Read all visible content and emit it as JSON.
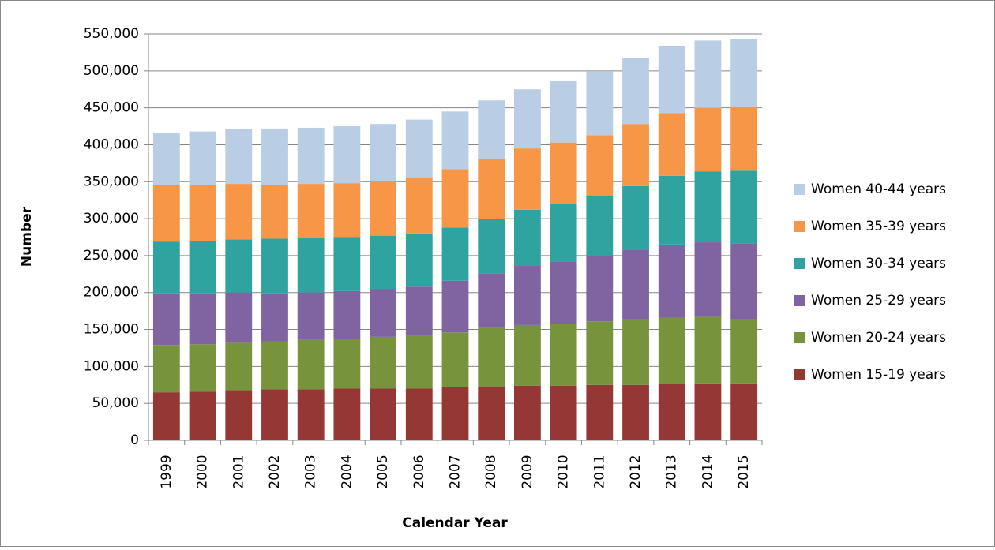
{
  "chart_data": {
    "type": "stacked_bar",
    "x_label": "Calendar Year",
    "y_label": "Number",
    "categories": [
      "1999",
      "2000",
      "2001",
      "2002",
      "2003",
      "2004",
      "2005",
      "2006",
      "2007",
      "2008",
      "2009",
      "2010",
      "2011",
      "2012",
      "2013",
      "2014",
      "2015"
    ],
    "series": [
      {
        "name": "Women 15-19 years",
        "color": "#953735",
        "values": [
          65000,
          66000,
          68000,
          69000,
          69000,
          70000,
          70000,
          70000,
          72000,
          73000,
          74000,
          74000,
          75000,
          75000,
          76000,
          77000,
          77000
        ]
      },
      {
        "name": "Women 20-24 years",
        "color": "#77933c",
        "values": [
          64000,
          64000,
          64000,
          65000,
          67000,
          67000,
          70000,
          72000,
          74000,
          79000,
          82000,
          84000,
          86000,
          89000,
          90000,
          90000,
          87000
        ]
      },
      {
        "name": "Women 25-29 years",
        "color": "#8064a2",
        "values": [
          70000,
          69000,
          68000,
          65000,
          64000,
          65000,
          65000,
          66000,
          70000,
          74000,
          80000,
          84000,
          88000,
          94000,
          99000,
          101000,
          102000
        ]
      },
      {
        "name": "Women 30-34 years",
        "color": "#2fa3a0",
        "values": [
          70000,
          71000,
          72000,
          74000,
          74000,
          73000,
          72000,
          72000,
          72000,
          74000,
          76000,
          78000,
          81000,
          86000,
          93000,
          96000,
          99000
        ]
      },
      {
        "name": "Women 35-39 years",
        "color": "#f79646",
        "values": [
          76000,
          75000,
          75000,
          73000,
          73000,
          73000,
          74000,
          76000,
          79000,
          81000,
          83000,
          83000,
          83000,
          84000,
          85000,
          86000,
          87000
        ]
      },
      {
        "name": "Women 40-44 years",
        "color": "#b9cde5",
        "values": [
          71000,
          73000,
          74000,
          76000,
          76000,
          77000,
          77000,
          78000,
          78000,
          79000,
          80000,
          83000,
          86000,
          89000,
          91000,
          91000,
          91000
        ]
      }
    ],
    "ylim": [
      0,
      550000
    ],
    "yticks": [
      0,
      {
        "value": 50000,
        "label": "50,000"
      },
      {
        "value": 100000,
        "label": "100,000"
      },
      {
        "value": 150000,
        "label": "150,000"
      },
      {
        "value": 200000,
        "label": "200,000"
      },
      {
        "value": 250000,
        "label": "250,000"
      },
      {
        "value": 300000,
        "label": "300,000"
      },
      {
        "value": 350000,
        "label": "350,000"
      },
      {
        "value": 400000,
        "label": "400,000"
      },
      {
        "value": 450000,
        "label": "450,000"
      },
      {
        "value": 500000,
        "label": "500,000"
      },
      {
        "value": 550000,
        "label": "550,000"
      }
    ],
    "grid": true,
    "legend": "right"
  }
}
